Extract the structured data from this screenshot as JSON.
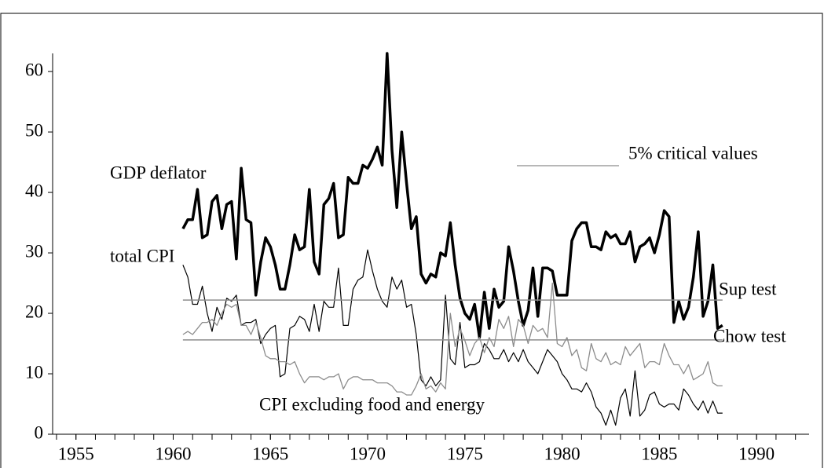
{
  "chart_data": {
    "type": "line",
    "x": [
      1960.5,
      1960.75,
      1961,
      1961.25,
      1961.5,
      1961.75,
      1962,
      1962.25,
      1962.5,
      1962.75,
      1963,
      1963.25,
      1963.5,
      1963.75,
      1964,
      1964.25,
      1964.5,
      1964.75,
      1965,
      1965.25,
      1965.5,
      1965.75,
      1966,
      1966.25,
      1966.5,
      1966.75,
      1967,
      1967.25,
      1967.5,
      1967.75,
      1968,
      1968.25,
      1968.5,
      1968.75,
      1969,
      1969.25,
      1969.5,
      1969.75,
      1970,
      1970.25,
      1970.5,
      1970.75,
      1971,
      1971.25,
      1971.5,
      1971.75,
      1972,
      1972.25,
      1972.5,
      1972.75,
      1973,
      1973.25,
      1973.5,
      1973.75,
      1974,
      1974.25,
      1974.5,
      1974.75,
      1975,
      1975.25,
      1975.5,
      1975.75,
      1976,
      1976.25,
      1976.5,
      1976.75,
      1977,
      1977.25,
      1977.5,
      1977.75,
      1978,
      1978.25,
      1978.5,
      1978.75,
      1979,
      1979.25,
      1979.5,
      1979.75,
      1980,
      1980.25,
      1980.5,
      1980.75,
      1981,
      1981.25,
      1981.5,
      1981.75,
      1982,
      1982.25,
      1982.5,
      1982.75,
      1983,
      1983.25,
      1983.5,
      1983.75,
      1984,
      1984.25,
      1984.5,
      1984.75,
      1985,
      1985.25,
      1985.5,
      1985.75,
      1986,
      1986.25,
      1986.5,
      1986.75,
      1987,
      1987.25,
      1987.5,
      1987.75,
      1988,
      1988.25
    ],
    "series": [
      {
        "name": "GDP deflator",
        "color": "#000000",
        "values": [
          34,
          35.5,
          35.5,
          40.5,
          32.5,
          33,
          38.5,
          39.5,
          34,
          38,
          38.5,
          29,
          44,
          35.5,
          35,
          23,
          28.5,
          32.5,
          31,
          28,
          24,
          24,
          28,
          33,
          30.5,
          31,
          40.5,
          28.5,
          26.5,
          38,
          39,
          41.5,
          32.5,
          33,
          42.5,
          41.5,
          41.5,
          44.5,
          44,
          45.5,
          47.5,
          44.5,
          63,
          47,
          37.5,
          50,
          41.5,
          34,
          36,
          26.5,
          25,
          26.5,
          26,
          30,
          29.5,
          35,
          28,
          22.5,
          20,
          19,
          21.5,
          16,
          23.5,
          17.5,
          24,
          21,
          22,
          31,
          27,
          22,
          18,
          20.5,
          27.5,
          19.5,
          27.5,
          27.5,
          27,
          23,
          23,
          23,
          32,
          34,
          35,
          35,
          31,
          31,
          30.5,
          33.5,
          32.5,
          33,
          31.5,
          31.5,
          33.5,
          28.5,
          31,
          31.5,
          32.5,
          30,
          33,
          37,
          36,
          18.5,
          22,
          19,
          21,
          26,
          33.5,
          19.5,
          22,
          28,
          17.5,
          18
        ]
      },
      {
        "name": "total CPI",
        "color": "#000000",
        "values": [
          28,
          26,
          21.5,
          21.5,
          24.5,
          20,
          17,
          21,
          19,
          22.5,
          22,
          23,
          18,
          18.5,
          18.5,
          19,
          15,
          16.5,
          17.5,
          18,
          9.5,
          10,
          17.5,
          18,
          19.5,
          19,
          17,
          21.5,
          17,
          22,
          21,
          21,
          27.5,
          18,
          18,
          24,
          25.5,
          26,
          30.5,
          27,
          24,
          22,
          21,
          26,
          24,
          25.5,
          21,
          21.5,
          16.5,
          9,
          8,
          9.5,
          8,
          9,
          23,
          12.5,
          11.5,
          18.5,
          11,
          11.5,
          11.5,
          12,
          15,
          14,
          12.5,
          12.5,
          14,
          12,
          13.5,
          12,
          14,
          12,
          11,
          10,
          12,
          14,
          13,
          12,
          10,
          9,
          7.5,
          7.5,
          7,
          8.5,
          7,
          4.5,
          3.5,
          1.5,
          4,
          1.5,
          6,
          7.5,
          3,
          10.5,
          3,
          4,
          6.5,
          7,
          5,
          4.5,
          5,
          5,
          4,
          7.5,
          6.5,
          5,
          4,
          5.5,
          3.5,
          5.5,
          3.5,
          3.5
        ]
      },
      {
        "name": "CPI excluding food and energy",
        "color": "#8c8c8c",
        "values": [
          16.5,
          17,
          16.5,
          17.5,
          18.5,
          18.5,
          19,
          18,
          20,
          21.5,
          21,
          21.5,
          18,
          18,
          16.5,
          18.5,
          16,
          13,
          12.5,
          12.5,
          12,
          12,
          11.5,
          12,
          10,
          8.5,
          9.5,
          9.5,
          9.5,
          9,
          9.5,
          9.5,
          10,
          7.5,
          9,
          9.5,
          9.5,
          9,
          9,
          9,
          8.5,
          8.5,
          8.5,
          8,
          7,
          7,
          6.5,
          6.5,
          8,
          10,
          7.5,
          8,
          7,
          8.5,
          7.5,
          20,
          14.5,
          17.5,
          15.5,
          13,
          15,
          16,
          13.5,
          16,
          14.5,
          19,
          17.5,
          19.5,
          14.5,
          19,
          18,
          15,
          18,
          17,
          17.5,
          16,
          25,
          15,
          14.5,
          16,
          13,
          14,
          11,
          10.5,
          15,
          12.5,
          12,
          13.5,
          11.5,
          12,
          11.5,
          14.5,
          13,
          14,
          15,
          11,
          12,
          12,
          11.5,
          15,
          13,
          11.5,
          11.5,
          10,
          11.5,
          9,
          9.5,
          10,
          12,
          8.5,
          8,
          8
        ]
      }
    ],
    "critical_label": "5% critical values",
    "critical_color": "#8c8c8c",
    "critical_values": [
      {
        "name": "Sup test",
        "value": 22.2
      },
      {
        "name": "Chow test",
        "value": 15.6
      }
    ],
    "xlim": [
      1953.8,
      1992.7
    ],
    "xticks": [
      1955,
      1960,
      1965,
      1970,
      1975,
      1980,
      1985,
      1990
    ],
    "ylim": [
      0,
      63
    ],
    "yticks": [
      0,
      10,
      20,
      30,
      40,
      50,
      60
    ]
  }
}
